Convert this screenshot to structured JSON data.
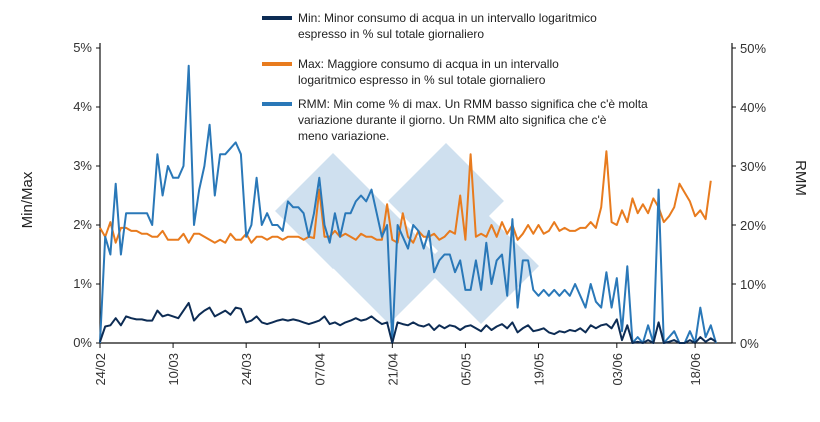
{
  "chart_data": {
    "type": "line",
    "ylabel_left": "Min/Max",
    "ylabel_right": "RMM",
    "y_left_ticks": [
      "0%",
      "1%",
      "2%",
      "3%",
      "4%",
      "5%"
    ],
    "y_right_ticks": [
      "0%",
      "10%",
      "20%",
      "30%",
      "40%",
      "50%"
    ],
    "ylim_left": [
      0,
      5
    ],
    "ylim_right": [
      0,
      50
    ],
    "x_start_label_index": 0,
    "x_tick_labels": [
      "24/02",
      "10/03",
      "24/03",
      "07/04",
      "21/04",
      "05/05",
      "19/05",
      "03/06",
      "18/06"
    ],
    "x_tick_day_index": [
      0,
      14,
      28,
      42,
      56,
      70,
      84,
      99,
      114
    ],
    "legend_position": "top-right",
    "colors": {
      "min": "#0d2c54",
      "max": "#e87b1e",
      "rmm": "#2a78b8"
    },
    "series": [
      {
        "name": "Min: Minor consumo di acqua in un intervallo logaritmico espresso in % sul totale giornaliero",
        "key": "min",
        "axis": "left",
        "values": [
          0.02,
          0.28,
          0.3,
          0.42,
          0.3,
          0.45,
          0.42,
          0.4,
          0.4,
          0.38,
          0.38,
          0.55,
          0.45,
          0.48,
          0.45,
          0.42,
          0.55,
          0.68,
          0.38,
          0.48,
          0.55,
          0.6,
          0.45,
          0.5,
          0.55,
          0.48,
          0.6,
          0.58,
          0.35,
          0.38,
          0.45,
          0.35,
          0.32,
          0.35,
          0.38,
          0.4,
          0.38,
          0.4,
          0.38,
          0.35,
          0.32,
          0.35,
          0.38,
          0.45,
          0.32,
          0.35,
          0.3,
          0.35,
          0.38,
          0.42,
          0.38,
          0.4,
          0.45,
          0.38,
          0.32,
          0.35,
          0.0,
          0.35,
          0.32,
          0.3,
          0.35,
          0.3,
          0.28,
          0.32,
          0.22,
          0.3,
          0.25,
          0.3,
          0.28,
          0.22,
          0.28,
          0.3,
          0.25,
          0.2,
          0.3,
          0.22,
          0.28,
          0.32,
          0.25,
          0.35,
          0.18,
          0.25,
          0.3,
          0.2,
          0.22,
          0.25,
          0.18,
          0.15,
          0.2,
          0.18,
          0.22,
          0.2,
          0.25,
          0.18,
          0.3,
          0.25,
          0.3,
          0.32,
          0.25,
          0.4,
          0.05,
          0.3,
          0.0,
          0.02,
          0.0,
          0.05,
          0.0,
          0.35,
          0.0,
          0.02,
          0.05,
          0.0,
          0.0,
          0.05,
          0.0,
          0.1,
          0.02,
          0.08,
          0.02
        ]
      },
      {
        "name": "Max: Maggiore consumo di acqua in un intervallo logaritmico espresso in % sul totale giornaliero",
        "key": "max",
        "axis": "left",
        "values": [
          1.95,
          1.8,
          2.05,
          1.7,
          1.95,
          1.95,
          1.9,
          1.9,
          1.85,
          1.85,
          1.8,
          1.8,
          1.9,
          1.75,
          1.75,
          1.75,
          1.85,
          1.7,
          1.85,
          1.85,
          1.8,
          1.75,
          1.7,
          1.75,
          1.7,
          1.85,
          1.75,
          1.75,
          1.85,
          1.7,
          1.8,
          1.8,
          1.75,
          1.8,
          1.8,
          1.75,
          1.8,
          1.8,
          1.8,
          1.75,
          1.8,
          1.78,
          2.6,
          1.8,
          1.8,
          1.9,
          1.8,
          1.85,
          1.8,
          1.75,
          1.85,
          1.8,
          1.8,
          1.75,
          1.75,
          2.35,
          1.75,
          1.7,
          2.2,
          1.8,
          1.7,
          1.9,
          1.8,
          1.8,
          1.85,
          1.75,
          1.8,
          1.9,
          1.85,
          2.5,
          1.75,
          3.2,
          1.8,
          1.85,
          1.8,
          2.0,
          1.8,
          2.05,
          1.85,
          2.0,
          1.75,
          1.85,
          2.0,
          1.85,
          2.0,
          1.85,
          1.9,
          2.05,
          1.9,
          1.95,
          1.9,
          1.9,
          1.95,
          1.95,
          2.05,
          1.95,
          2.3,
          3.25,
          2.05,
          2.0,
          2.25,
          2.05,
          2.45,
          2.2,
          2.35,
          2.2,
          2.45,
          2.3,
          2.05,
          2.15,
          2.3,
          2.7,
          2.55,
          2.4,
          2.15,
          2.25,
          2.1,
          2.75
        ]
      },
      {
        "name": "RMM: Min come % di max. Un RMM basso significa che c'è molta variazione durante il giorno. Un RMM alto significa che c'è meno variazione.",
        "key": "rmm",
        "axis": "right",
        "values": [
          0,
          18,
          15,
          27,
          15,
          22,
          22,
          22,
          22,
          22,
          20,
          32,
          25,
          30,
          28,
          28,
          30,
          47,
          20,
          26,
          30,
          37,
          25,
          32,
          32,
          33,
          34,
          32,
          18,
          20,
          28,
          20,
          22,
          20,
          20,
          19,
          24,
          23,
          23,
          22,
          18,
          22,
          28,
          20,
          17,
          22,
          18,
          22,
          22,
          24,
          25,
          24,
          26,
          22,
          18,
          20,
          0,
          20,
          18,
          16,
          20,
          19,
          16,
          19,
          12,
          14,
          15,
          15,
          12,
          14,
          9,
          9,
          14,
          9,
          17,
          10,
          14,
          15,
          8,
          21,
          6,
          14,
          14,
          9,
          8,
          9,
          8,
          9,
          8,
          9,
          8,
          10,
          8,
          6,
          10,
          7,
          6,
          12,
          6,
          11,
          2,
          13,
          0,
          1,
          0,
          3,
          0,
          26,
          0,
          1,
          2,
          0,
          0,
          2,
          0,
          6,
          1,
          3,
          0
        ]
      }
    ]
  }
}
